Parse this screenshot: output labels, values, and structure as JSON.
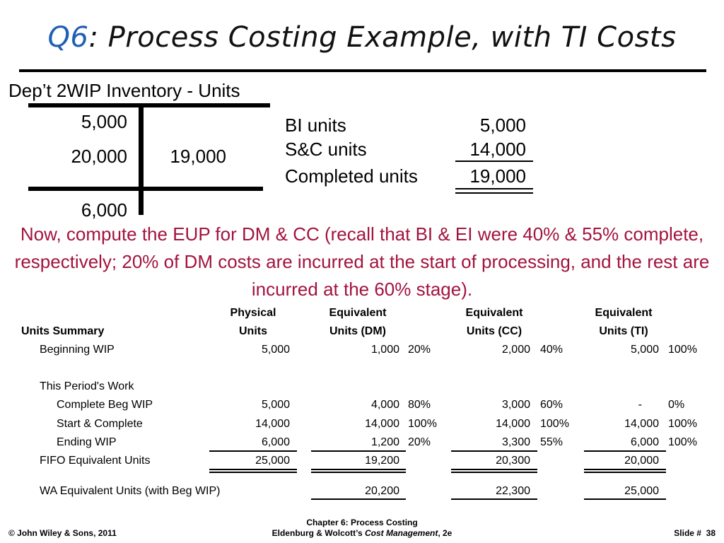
{
  "title": {
    "q": "Q6",
    "text": ": Process Costing Example, with TI Costs"
  },
  "t_account": {
    "title": "Dep’t 2WIP Inventory - Units",
    "debit_1": "5,000",
    "debit_2": "20,000",
    "credit_1": "19,000",
    "ending": "6,000"
  },
  "reconciliation": {
    "rows": [
      {
        "label": "BI units",
        "value": "5,000"
      },
      {
        "label": "S&C units",
        "value": "14,000"
      },
      {
        "label": "Completed units",
        "value": "19,000"
      }
    ]
  },
  "note": "Now, compute the EUP for DM & CC (recall that BI & EI were 40% & 55% complete, respectively; 20% of DM costs are incurred at the start of processing, and the rest are incurred at the 60% stage).",
  "table": {
    "header": {
      "summary": "Units Summary",
      "physical_1": "Physical",
      "physical_2": "Units",
      "dm_1": "Equivalent",
      "dm_2": "Units (DM)",
      "cc_1": "Equivalent",
      "cc_2": "Units (CC)",
      "ti_1": "Equivalent",
      "ti_2": "Units (TI)"
    },
    "rows": [
      {
        "label": "Beginning WIP",
        "phys": "5,000",
        "dm": "1,000",
        "dm_pct": "20%",
        "cc": "2,000",
        "cc_pct": "40%",
        "ti": "5,000",
        "ti_pct": "100%"
      },
      {
        "label": "This Period's Work"
      },
      {
        "label": "Complete Beg WIP",
        "phys": "5,000",
        "dm": "4,000",
        "dm_pct": "80%",
        "cc": "3,000",
        "cc_pct": "60%",
        "ti": "-",
        "ti_pct": "0%"
      },
      {
        "label": "Start & Complete",
        "phys": "14,000",
        "dm": "14,000",
        "dm_pct": "100%",
        "cc": "14,000",
        "cc_pct": "100%",
        "ti": "14,000",
        "ti_pct": "100%"
      },
      {
        "label": "Ending WIP",
        "phys": "6,000",
        "dm": "1,200",
        "dm_pct": "20%",
        "cc": "3,300",
        "cc_pct": "55%",
        "ti": "6,000",
        "ti_pct": "100%"
      },
      {
        "label": "FIFO Equivalent Units",
        "phys": "25,000",
        "dm": "19,200",
        "cc": "20,300",
        "ti": "20,000"
      },
      {
        "label": "WA Equivalent Units (with Beg WIP)",
        "dm": "20,200",
        "cc": "22,300",
        "ti": "25,000"
      }
    ]
  },
  "footer": {
    "copyright": "© John Wiley & Sons, 2011",
    "chapter": "Chapter 6: Process Costing",
    "book_prefix": "Eldenburg & Wolcott’s ",
    "book_title": "Cost Management",
    "book_suffix": ", 2e",
    "slide": "Slide #  38"
  },
  "colors": {
    "accent_blue": "#1f5fb4",
    "note_red": "#a3133f"
  }
}
